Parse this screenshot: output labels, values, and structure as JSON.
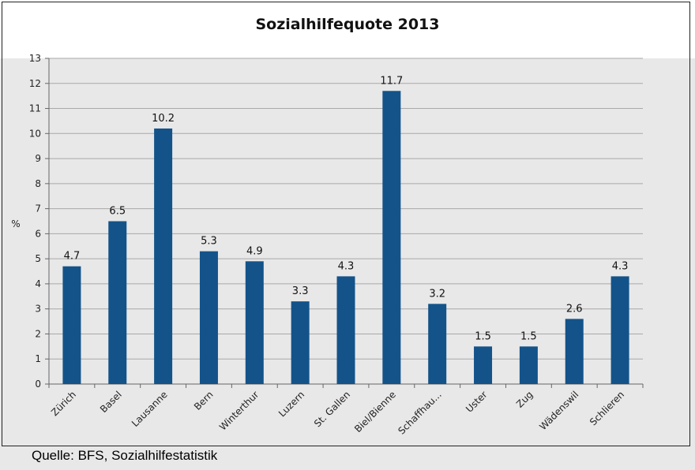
{
  "source_note": "Quelle: BFS, Sozialhilfestatistik",
  "colors": {
    "bar": "#13538a",
    "grid": "#a8a8a8",
    "plot_bg": "#e8e8e8",
    "title_bg": "#ffffff"
  },
  "chart_data": {
    "type": "bar",
    "title": "Sozialhilfequote 2013",
    "xlabel": "",
    "ylabel": "%",
    "ylim": [
      0,
      13
    ],
    "yticks": [
      "0",
      "1",
      "2",
      "3",
      "4",
      "5",
      "6",
      "7",
      "8",
      "9",
      "10",
      "11",
      "12",
      "13"
    ],
    "grid": true,
    "categories": [
      "Zürich",
      "Basel",
      "Lausanne",
      "Bern",
      "Winterthur",
      "Luzern",
      "St. Gallen",
      "Biel/Bienne",
      "Schaffhau...",
      "Uster",
      "Zug",
      "Wädenswil",
      "Schlieren"
    ],
    "values": [
      4.7,
      6.5,
      10.2,
      5.3,
      4.9,
      3.3,
      4.3,
      11.7,
      3.2,
      1.5,
      1.5,
      2.6,
      4.3
    ],
    "labels": [
      "4.7",
      "6.5",
      "10.2",
      "5.3",
      "4.9",
      "3.3",
      "4.3",
      "11.7",
      "3.2",
      "1.5",
      "1.5",
      "2.6",
      "4.3"
    ]
  }
}
